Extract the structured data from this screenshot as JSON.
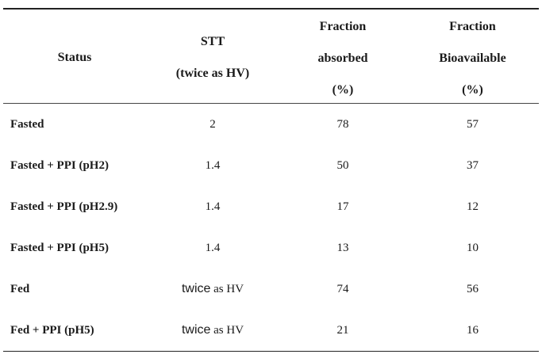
{
  "table": {
    "headers": {
      "status": "Status",
      "stt": [
        "STT",
        "(twice as HV)"
      ],
      "fraction_absorbed": [
        "Fraction",
        "absorbed",
        "(%)"
      ],
      "fraction_bioavailable": [
        "Fraction",
        "Bioavailable",
        "(%)"
      ]
    },
    "rows": [
      {
        "status": "Fasted",
        "stt": {
          "prefix": "",
          "rest": "2"
        },
        "fa": "78",
        "fb": "57"
      },
      {
        "status": "Fasted + PPI (pH2)",
        "stt": {
          "prefix": "",
          "rest": "1.4"
        },
        "fa": "50",
        "fb": "37"
      },
      {
        "status": "Fasted + PPI (pH2.9)",
        "stt": {
          "prefix": "",
          "rest": "1.4"
        },
        "fa": "17",
        "fb": "12"
      },
      {
        "status": "Fasted + PPI (pH5)",
        "stt": {
          "prefix": "",
          "rest": "1.4"
        },
        "fa": "13",
        "fb": "10"
      },
      {
        "status": "Fed",
        "stt": {
          "prefix": "twice",
          "rest": " as HV"
        },
        "fa": "74",
        "fb": "56"
      },
      {
        "status": "Fed + PPI (pH5)",
        "stt": {
          "prefix": "twice",
          "rest": " as HV"
        },
        "fa": "21",
        "fb": "16"
      }
    ]
  }
}
